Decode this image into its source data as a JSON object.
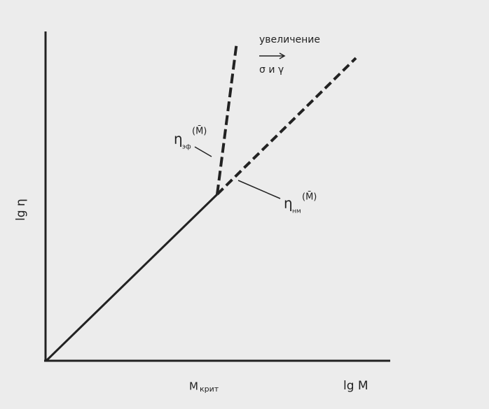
{
  "labels": {
    "increase": "увеличение",
    "params": "σ и γ",
    "y_axis": "lg η",
    "x_axis": "lg M",
    "critical": {
      "main": "M",
      "sub": "крит"
    },
    "upper_curve": {
      "main": "η",
      "sub": "эф",
      "arg": "(M̄)"
    },
    "lower_curve": {
      "main": "η",
      "sub": "нм",
      "arg": "(M̄)"
    }
  }
}
